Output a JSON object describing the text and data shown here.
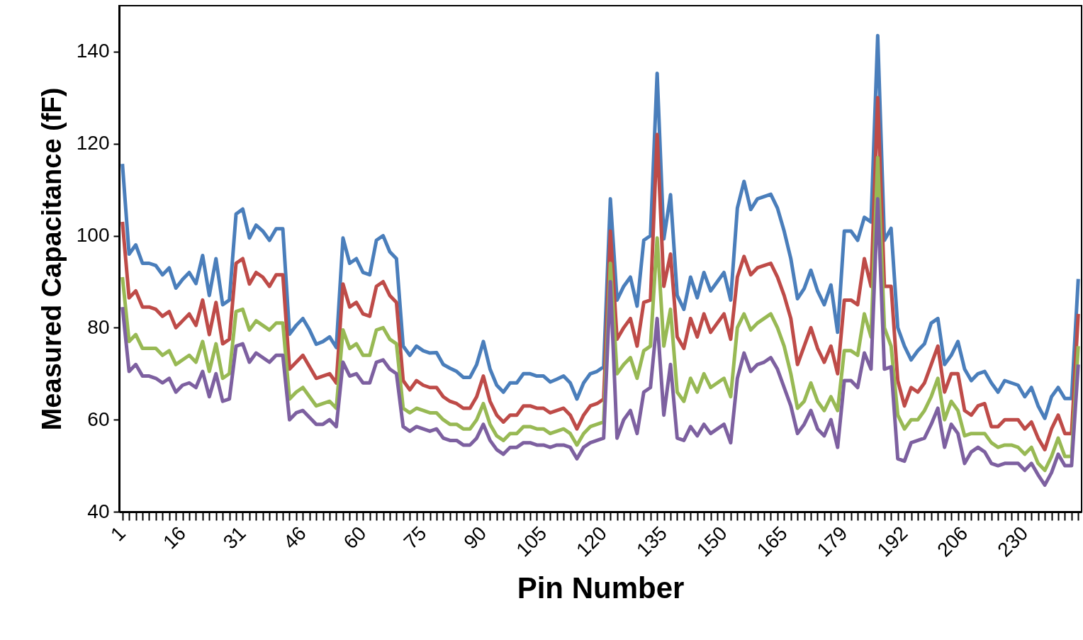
{
  "chart_data": {
    "type": "line",
    "xlabel": "Pin Number",
    "ylabel": "Measured Capacitance (fF)",
    "ylim": [
      40,
      150
    ],
    "yticks": [
      40,
      60,
      80,
      100,
      120,
      140
    ],
    "line_style": "solid",
    "categories": [
      "1",
      null,
      null,
      null,
      null,
      null,
      null,
      null,
      null,
      "16",
      null,
      null,
      null,
      null,
      null,
      null,
      null,
      null,
      "31",
      null,
      null,
      null,
      null,
      null,
      null,
      null,
      null,
      "46",
      null,
      null,
      null,
      null,
      null,
      null,
      null,
      null,
      "60",
      null,
      null,
      null,
      null,
      null,
      null,
      null,
      null,
      "75",
      null,
      null,
      null,
      null,
      null,
      null,
      null,
      null,
      "90",
      null,
      null,
      null,
      null,
      null,
      null,
      null,
      null,
      "105",
      null,
      null,
      null,
      null,
      null,
      null,
      null,
      null,
      "120",
      null,
      null,
      null,
      null,
      null,
      null,
      null,
      null,
      "135",
      null,
      null,
      null,
      null,
      null,
      null,
      null,
      null,
      "150",
      null,
      null,
      null,
      null,
      null,
      null,
      null,
      null,
      "165",
      null,
      null,
      null,
      null,
      null,
      null,
      null,
      null,
      "179",
      null,
      null,
      null,
      null,
      null,
      null,
      null,
      null,
      "192",
      null,
      null,
      null,
      null,
      null,
      null,
      null,
      null,
      "206",
      null,
      null,
      null,
      null,
      null,
      null,
      null,
      null,
      "230",
      null,
      null,
      null,
      null,
      null,
      null,
      null,
      null
    ],
    "series": [
      {
        "color": "#4a7ebb",
        "values": [
          115.6,
          96,
          98,
          94,
          94,
          93.5,
          91.5,
          93,
          88.6,
          90.5,
          92,
          89.6,
          95.7,
          87,
          95,
          85,
          86,
          104.7,
          105.8,
          99.5,
          102.3,
          101,
          99,
          101.5,
          101.5,
          78.6,
          80.5,
          82,
          79.5,
          76.4,
          77,
          78,
          75.7,
          99.5,
          94,
          95,
          92,
          91.5,
          99,
          100,
          96.5,
          95,
          76,
          74,
          76,
          75,
          74.5,
          74.6,
          72,
          71.2,
          70.5,
          69.2,
          69.2,
          72,
          77,
          71,
          67.5,
          66,
          68,
          68,
          70,
          70,
          69.5,
          69.5,
          68.2,
          68.8,
          69.5,
          68,
          64.5,
          68,
          70,
          70.5,
          71.5,
          108,
          86,
          89,
          91,
          84.7,
          99,
          100,
          135.3,
          99.3,
          108.9,
          87,
          84,
          91,
          86.5,
          92,
          88,
          90,
          92,
          86,
          106,
          111.8,
          105.7,
          108,
          108.5,
          109,
          106,
          101,
          95,
          86.3,
          88.5,
          92.5,
          88,
          85,
          89.3,
          79,
          101,
          101,
          99,
          104,
          103,
          143.5,
          99,
          101.6,
          80,
          76,
          73,
          75,
          76.5,
          81,
          82,
          72,
          74,
          77,
          71,
          68.5,
          70,
          70.5,
          68,
          66,
          68.5,
          68,
          67.5,
          65,
          67,
          63,
          60.3,
          65,
          67,
          64.6,
          64.6,
          90.6
        ]
      },
      {
        "color": "#be4b48",
        "values": [
          103,
          86.5,
          88,
          84.5,
          84.5,
          84,
          82.5,
          83.5,
          80,
          81.5,
          83,
          80.5,
          86,
          78.5,
          85.5,
          76.5,
          77.5,
          94,
          95,
          89.5,
          92,
          91,
          89,
          91.5,
          91.5,
          71,
          72.5,
          74,
          71.5,
          69,
          69.5,
          70,
          68,
          89.5,
          84.5,
          85.5,
          83,
          82.5,
          89,
          90,
          87,
          85.5,
          68.5,
          66.5,
          68.5,
          67.5,
          67,
          67,
          65,
          64,
          63.5,
          62.5,
          62.5,
          65,
          69.5,
          64,
          61,
          59.5,
          61,
          61,
          63,
          63,
          62.5,
          62.5,
          61.5,
          62,
          62.5,
          61,
          58,
          61,
          63,
          63.5,
          64.5,
          101,
          77.5,
          80,
          82,
          76,
          85.5,
          86,
          122,
          89,
          96,
          78,
          75.5,
          82,
          78,
          83,
          79,
          81,
          83,
          77.5,
          91,
          95.5,
          91.5,
          93,
          93.5,
          94,
          91,
          87,
          82,
          72,
          76,
          80,
          75.5,
          72.5,
          76,
          70,
          86,
          86,
          85,
          95,
          89,
          130,
          89,
          89,
          68.5,
          63,
          67,
          66,
          68,
          72,
          76,
          66,
          70,
          70,
          62,
          61,
          63,
          63.5,
          58.5,
          58.5,
          60,
          60,
          60,
          58,
          59.5,
          56,
          53.5,
          58,
          61,
          57,
          57,
          83
        ]
      },
      {
        "color": "#98b954",
        "values": [
          91,
          77,
          78.5,
          75.5,
          75.5,
          75.5,
          74,
          75,
          72,
          73,
          74,
          72.5,
          77,
          70.5,
          76.5,
          69,
          70,
          83.5,
          84,
          79.5,
          81.5,
          80.5,
          79.5,
          81,
          81,
          64.5,
          66,
          67,
          65,
          63,
          63.5,
          64,
          62.5,
          79.5,
          75.5,
          76.5,
          74,
          74,
          79.5,
          80,
          77.5,
          76.5,
          62.5,
          61.5,
          62.5,
          62,
          61.5,
          61.5,
          60,
          59,
          59,
          58,
          58,
          60,
          63.5,
          59,
          56.5,
          55.5,
          57,
          57,
          58.5,
          58.5,
          58,
          58,
          57,
          57.5,
          58,
          57,
          54.5,
          57,
          58.5,
          59,
          59.5,
          94,
          70,
          72,
          73.5,
          69,
          75,
          76,
          99.5,
          76,
          84,
          66,
          64,
          69,
          66,
          70,
          67,
          68,
          69,
          65,
          80,
          83,
          79.5,
          81,
          82,
          83,
          80,
          76,
          70,
          62.5,
          64,
          68,
          64,
          62,
          65,
          62,
          75,
          75,
          74,
          83,
          78,
          117,
          80,
          76,
          61,
          58,
          60,
          60,
          62,
          65,
          69,
          60,
          64,
          62,
          56.5,
          57,
          57,
          57,
          55,
          54,
          54.5,
          54.5,
          54,
          52.5,
          54,
          50.5,
          49,
          52,
          56,
          52,
          52,
          76
        ]
      },
      {
        "color": "#7d60a0",
        "values": [
          84.5,
          70.5,
          72,
          69.5,
          69.5,
          69,
          68,
          69,
          66,
          67.5,
          68,
          67,
          70.5,
          65,
          70,
          64,
          64.5,
          76,
          76.5,
          72.5,
          74.5,
          73.5,
          72.5,
          74,
          74,
          60,
          61.5,
          62,
          60.5,
          59,
          59,
          60,
          58.5,
          72.5,
          69.5,
          70,
          68,
          68,
          72.5,
          73,
          71,
          70,
          58.5,
          57.5,
          58.5,
          58,
          57.5,
          58,
          56,
          55.5,
          55.5,
          54.5,
          54.5,
          56,
          59,
          55.5,
          53.5,
          52.5,
          54,
          54,
          55,
          55,
          54.5,
          54.5,
          54,
          54.5,
          54.5,
          54,
          51.5,
          54,
          55,
          55.5,
          56,
          90,
          56,
          60,
          62,
          57,
          66,
          67,
          82,
          61,
          72,
          56,
          55.5,
          58.5,
          56.5,
          59,
          57,
          58,
          59,
          55,
          69,
          74.5,
          70.5,
          72,
          72.5,
          73.5,
          71,
          67,
          63,
          57,
          59,
          62,
          58,
          56.5,
          60,
          54,
          68.5,
          68.5,
          67,
          74.5,
          71,
          108,
          71,
          71.5,
          51.5,
          51,
          55,
          55.5,
          56,
          59,
          62.5,
          54,
          59,
          57,
          50.5,
          53,
          54,
          53,
          50.5,
          50,
          50.5,
          50.5,
          50.5,
          49,
          50.5,
          48,
          45.8,
          48.5,
          52.5,
          50,
          50,
          72
        ]
      }
    ]
  }
}
